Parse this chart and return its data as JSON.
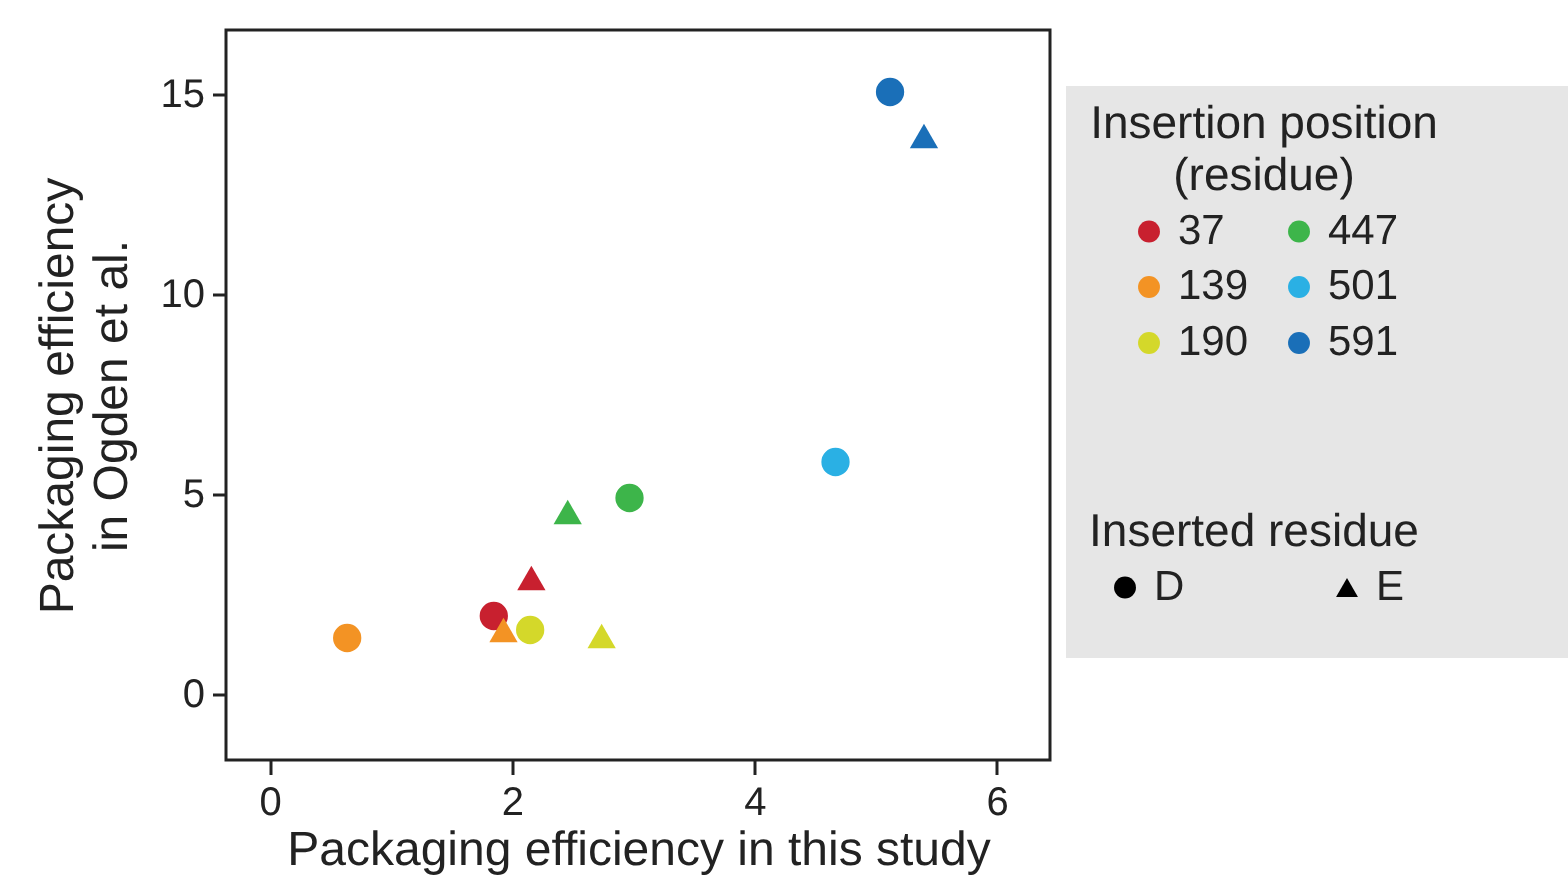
{
  "chart_data": {
    "type": "scatter",
    "xlabel": "Packaging efficiency in this study",
    "ylabel": "Packaging efficiency in Ogden et al.",
    "xlim": [
      -0.36,
      6.44
    ],
    "ylim": [
      -1.65,
      16.6
    ],
    "xticks": [
      0,
      2,
      4,
      6
    ],
    "yticks": [
      0,
      5,
      10,
      15
    ],
    "grid": false,
    "legend": "right",
    "legend_title": "Insertion position (residue)",
    "annotations": [
      "Inserted residue",
      "D",
      "E"
    ],
    "series": [
      {
        "name": "37",
        "color": "#c8202f",
        "marker": "circle",
        "x": [
          1.85
        ],
        "values": [
          1.95
        ]
      },
      {
        "name": "139",
        "color": "#f39324",
        "marker": "circle",
        "x": [
          0.64
        ],
        "values": [
          1.4
        ]
      },
      {
        "name": "190",
        "color": "#d4d82a",
        "marker": "circle",
        "x": [
          2.15
        ],
        "values": [
          1.6
        ]
      },
      {
        "name": "447",
        "color": "#3db54a",
        "marker": "circle",
        "x": [
          2.97
        ],
        "values": [
          4.9
        ]
      },
      {
        "name": "501",
        "color": "#2ab0e4",
        "marker": "circle",
        "x": [
          4.67
        ],
        "values": [
          5.8
        ]
      },
      {
        "name": "591",
        "color": "#1a6fb8",
        "marker": "circle",
        "x": [
          5.12
        ],
        "values": [
          15.05
        ]
      },
      {
        "color": "#c8202f",
        "marker": "triangle",
        "x": [
          2.16
        ],
        "values": [
          2.9
        ]
      },
      {
        "color": "#3db54a",
        "marker": "triangle",
        "x": [
          2.46
        ],
        "values": [
          4.55
        ]
      },
      {
        "color": "#f39324",
        "marker": "triangle",
        "x": [
          1.93
        ],
        "values": [
          1.6
        ]
      },
      {
        "color": "#d4d82a",
        "marker": "triangle",
        "x": [
          2.74
        ],
        "values": [
          1.45
        ]
      },
      {
        "color": "#1a6fb8",
        "marker": "triangle",
        "x": [
          5.4
        ],
        "values": [
          13.95
        ]
      }
    ]
  }
}
